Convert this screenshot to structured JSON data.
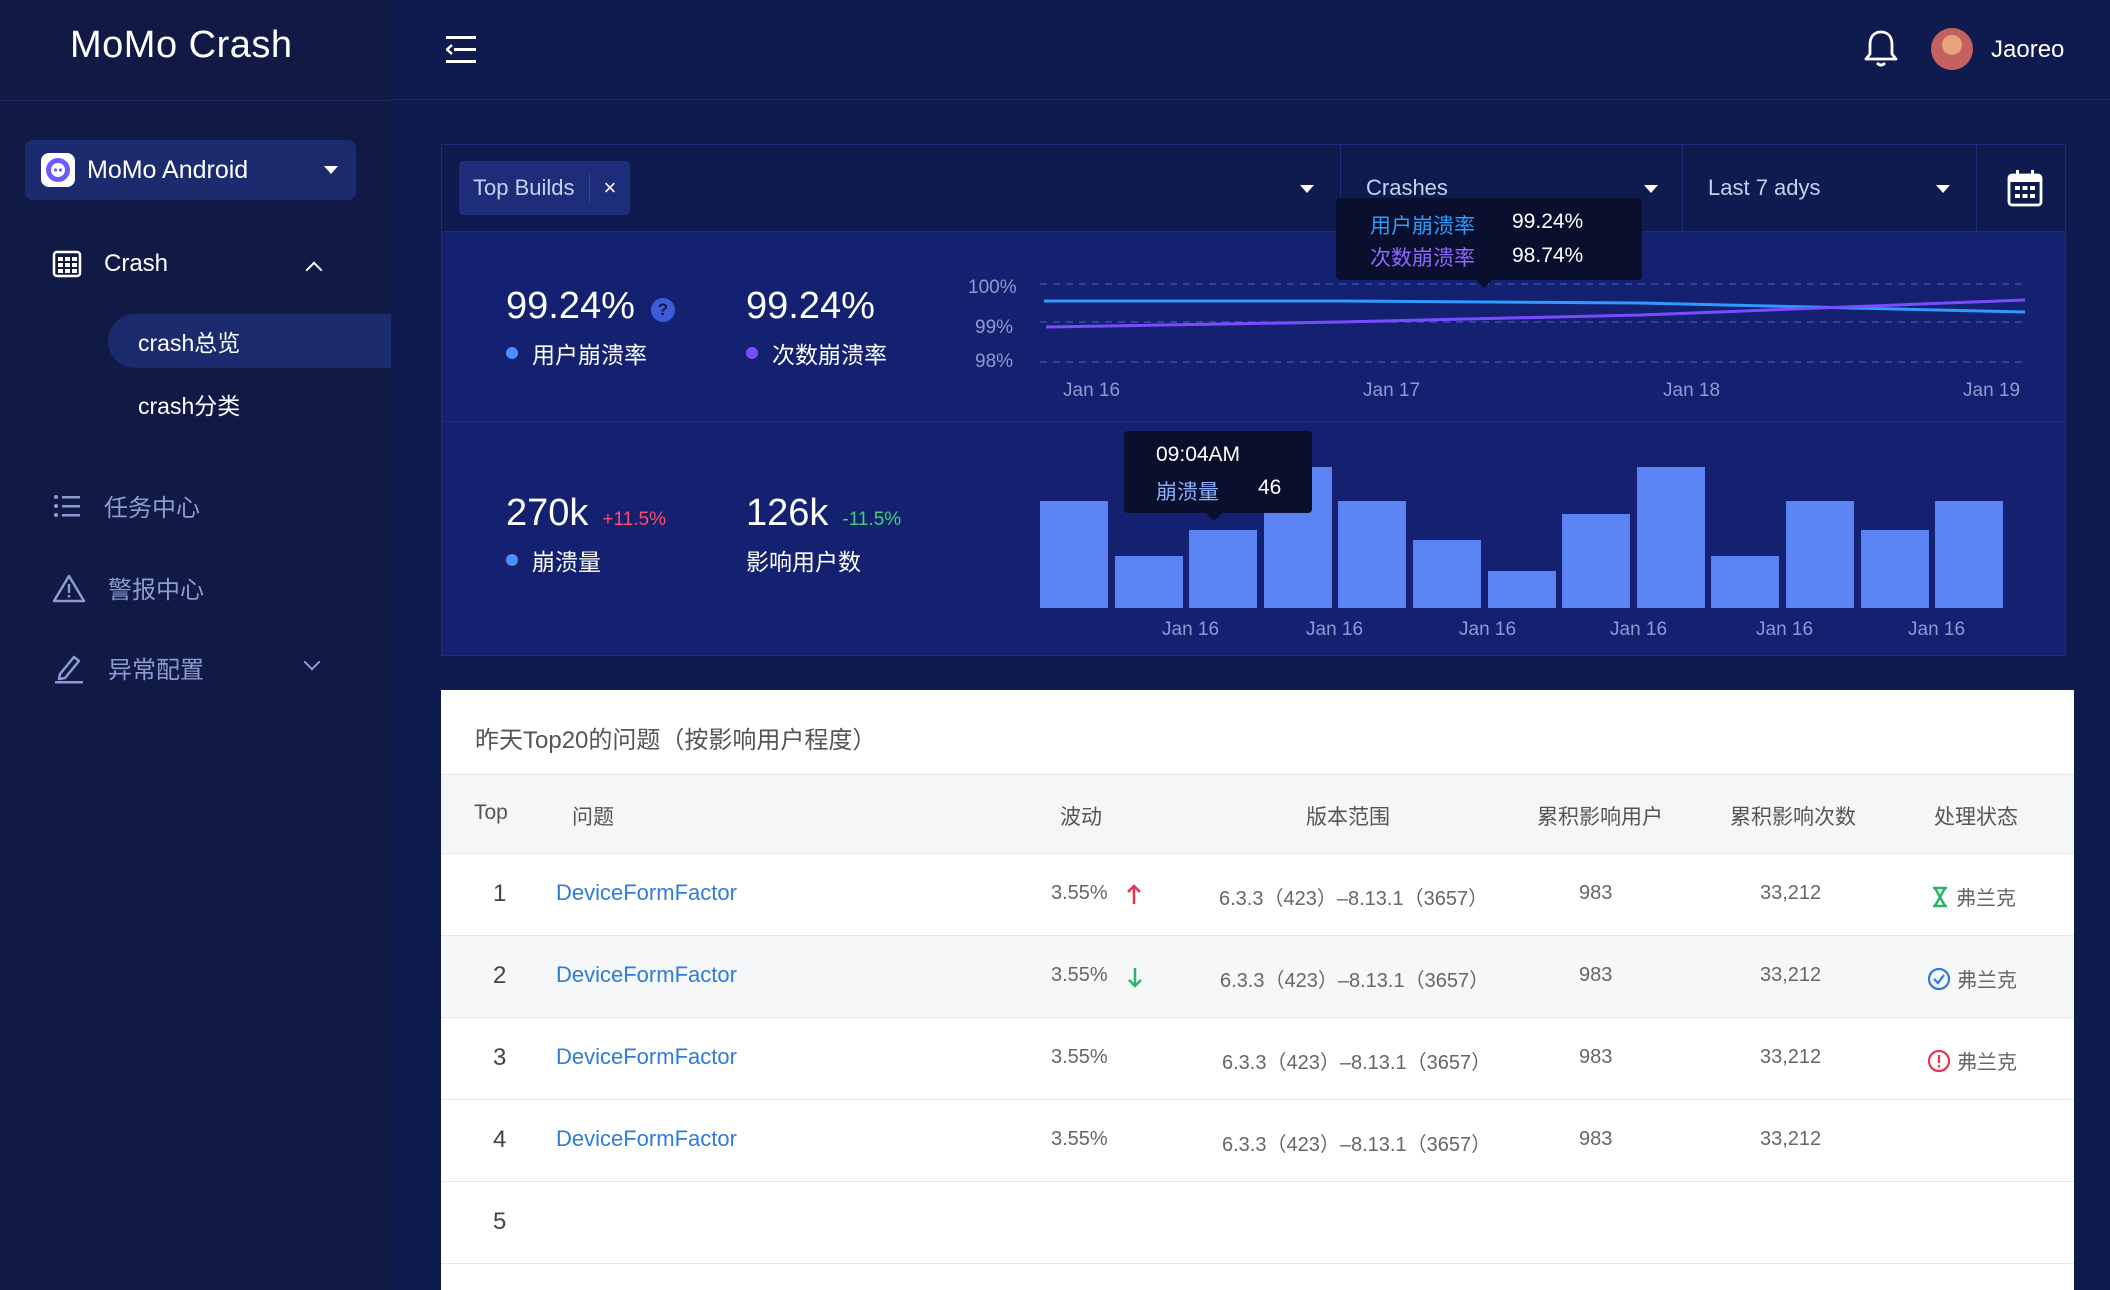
{
  "app": {
    "name": "MoMo Crash"
  },
  "sidebar": {
    "app_selector": {
      "label": "MoMo Android"
    },
    "menu": [
      {
        "label": "Crash",
        "icon": "grid-icon"
      },
      {
        "label": "任务中心",
        "icon": "list-icon"
      },
      {
        "label": "警报中心",
        "icon": "warning-icon"
      },
      {
        "label": "异常配置",
        "icon": "edit-icon"
      }
    ],
    "submenu": [
      {
        "label": "crash总览",
        "active": true
      },
      {
        "label": "crash分类",
        "active": false
      }
    ]
  },
  "header": {
    "username": "Jaoreo"
  },
  "filters": {
    "chip": "Top Builds",
    "chip_close": "×",
    "metric": "Crashes",
    "range": "Last 7 adys"
  },
  "stats": {
    "user_crash_rate": {
      "value": "99.24%",
      "label": "用户崩溃率",
      "help": "?",
      "color": "#4f8cff"
    },
    "count_crash_rate": {
      "value": "99.24%",
      "label": "次数崩溃率",
      "color": "#7b4cff"
    },
    "crash_count": {
      "value": "270k",
      "delta": "+11.5%",
      "label": "崩溃量"
    },
    "affected_users": {
      "value": "126k",
      "delta": "-11.5%",
      "label": "影响用户数"
    }
  },
  "line_chart": {
    "y_ticks": [
      "100%",
      "99%",
      "98%"
    ],
    "x_ticks": [
      "Jan 16",
      "Jan 17",
      "Jan 18",
      "Jan 19"
    ],
    "tooltip": [
      {
        "label": "用户崩溃率",
        "value": "99.24%"
      },
      {
        "label": "次数崩溃率",
        "value": "98.74%"
      }
    ]
  },
  "bar_chart": {
    "x_ticks": [
      "Jan 16",
      "Jan 16",
      "Jan 16",
      "Jan 16",
      "Jan 16",
      "Jan 16"
    ],
    "values": [
      58,
      28,
      42,
      76,
      58,
      37,
      20,
      51,
      76,
      28,
      58,
      42,
      58
    ],
    "tooltip": {
      "time": "09:04AM",
      "label": "崩溃量",
      "value": "46"
    }
  },
  "table": {
    "title": "昨天Top20的问题（按影响用户程度）",
    "headers": [
      "Top",
      "问题",
      "波动",
      "版本范围",
      "累积影响用户",
      "累积影响次数",
      "处理状态"
    ],
    "rows": [
      {
        "top": "1",
        "issue": "DeviceFormFactor",
        "change": "3.55%",
        "trend": "up",
        "version": "6.3.3（423）–8.13.1（3657）",
        "users": "983",
        "count": "33,212",
        "status": "弗兰克",
        "status_icon": "hourglass-icon"
      },
      {
        "top": "2",
        "issue": "DeviceFormFactor",
        "change": "3.55%",
        "trend": "down",
        "version": "6.3.3（423）–8.13.1（3657）",
        "users": "983",
        "count": "33,212",
        "status": "弗兰克",
        "status_icon": "check-circle-icon"
      },
      {
        "top": "3",
        "issue": "DeviceFormFactor",
        "change": "3.55%",
        "trend": "",
        "version": "6.3.3（423）–8.13.1（3657）",
        "users": "983",
        "count": "33,212",
        "status": "弗兰克",
        "status_icon": "alert-circle-icon"
      },
      {
        "top": "4",
        "issue": "DeviceFormFactor",
        "change": "3.55%",
        "trend": "",
        "version": "6.3.3（423）–8.13.1（3657）",
        "users": "983",
        "count": "33,212",
        "status": "",
        "status_icon": ""
      },
      {
        "top": "5",
        "issue": "",
        "change": "",
        "trend": "",
        "version": "",
        "users": "",
        "count": "",
        "status": "",
        "status_icon": ""
      }
    ]
  }
}
